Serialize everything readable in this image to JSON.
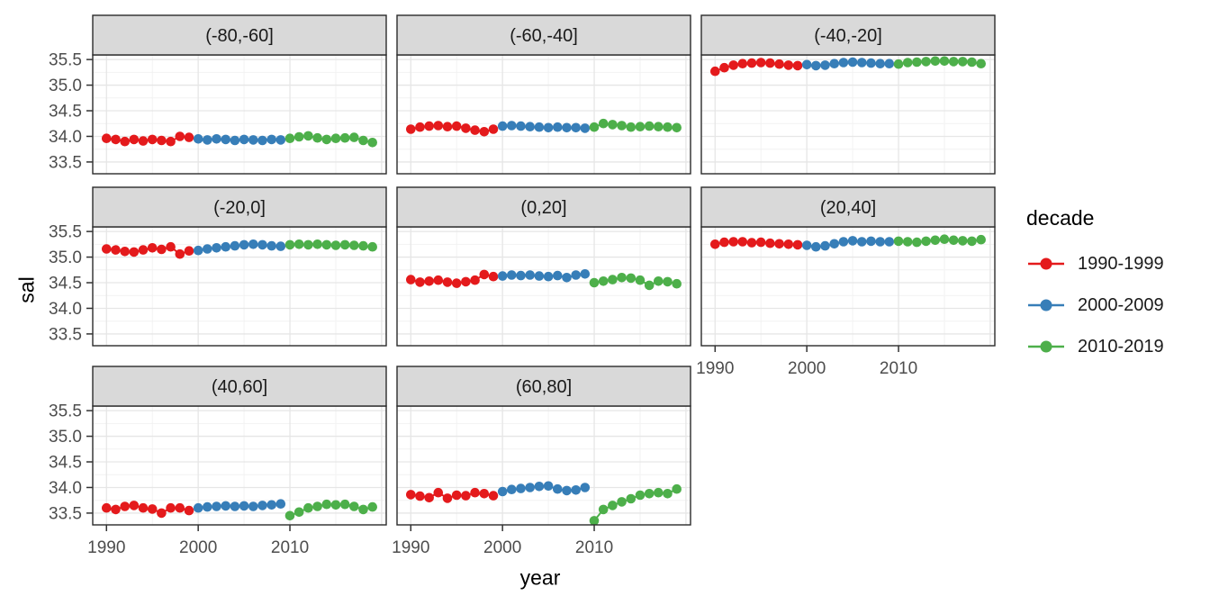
{
  "chart_data": {
    "type": "scatter",
    "title": "",
    "xlabel": "year",
    "ylabel": "sal",
    "grid": true,
    "x_ticks": [
      1990,
      2000,
      2010
    ],
    "x_minor_ticks": [
      1995,
      2005,
      2015
    ],
    "x_major_gridlines": [
      1990,
      2000,
      2010,
      2020
    ],
    "y_ticks": [
      33.5,
      34.0,
      34.5,
      35.0,
      35.5
    ],
    "y_minor_gridlines": [
      33.75,
      34.25,
      34.75,
      35.25
    ],
    "x_range": [
      1988.5,
      2020.5
    ],
    "y_range": [
      33.27,
      35.59
    ],
    "legend": {
      "title": "decade",
      "position": "right",
      "entries": [
        {
          "label": "1990-1999",
          "color": "#E41A1C"
        },
        {
          "label": "2000-2009",
          "color": "#377EB8"
        },
        {
          "label": "2010-2019",
          "color": "#4DAF4A"
        }
      ]
    },
    "facets": [
      {
        "label": "(-80,-60]",
        "series": [
          {
            "name": "1990-1999",
            "color": "#E41A1C",
            "start_year": 1990,
            "values": [
              33.96,
              33.94,
              33.9,
              33.94,
              33.91,
              33.94,
              33.92,
              33.9,
              34.0,
              33.98
            ]
          },
          {
            "name": "2000-2009",
            "color": "#377EB8",
            "start_year": 2000,
            "values": [
              33.95,
              33.93,
              33.95,
              33.94,
              33.92,
              33.94,
              33.93,
              33.92,
              33.94,
              33.93
            ]
          },
          {
            "name": "2010-2019",
            "color": "#4DAF4A",
            "start_year": 2010,
            "values": [
              33.96,
              33.99,
              34.01,
              33.97,
              33.94,
              33.96,
              33.97,
              33.98,
              33.92,
              33.88
            ]
          }
        ]
      },
      {
        "label": "(-60,-40]",
        "series": [
          {
            "name": "1990-1999",
            "color": "#E41A1C",
            "start_year": 1990,
            "values": [
              34.14,
              34.18,
              34.2,
              34.21,
              34.19,
              34.2,
              34.16,
              34.12,
              34.09,
              34.14
            ]
          },
          {
            "name": "2000-2009",
            "color": "#377EB8",
            "start_year": 2000,
            "values": [
              34.2,
              34.21,
              34.2,
              34.19,
              34.18,
              34.17,
              34.18,
              34.17,
              34.17,
              34.16
            ]
          },
          {
            "name": "2010-2019",
            "color": "#4DAF4A",
            "start_year": 2010,
            "values": [
              34.18,
              34.25,
              34.23,
              34.21,
              34.18,
              34.19,
              34.2,
              34.19,
              34.18,
              34.17
            ]
          }
        ]
      },
      {
        "label": "(-40,-20]",
        "series": [
          {
            "name": "1990-1999",
            "color": "#E41A1C",
            "start_year": 1990,
            "values": [
              35.27,
              35.34,
              35.39,
              35.42,
              35.43,
              35.44,
              35.43,
              35.41,
              35.39,
              35.38
            ]
          },
          {
            "name": "2000-2009",
            "color": "#377EB8",
            "start_year": 2000,
            "values": [
              35.4,
              35.38,
              35.39,
              35.42,
              35.44,
              35.45,
              35.44,
              35.43,
              35.42,
              35.42
            ]
          },
          {
            "name": "2010-2019",
            "color": "#4DAF4A",
            "start_year": 2010,
            "values": [
              35.41,
              35.44,
              35.45,
              35.46,
              35.47,
              35.47,
              35.46,
              35.46,
              35.45,
              35.42
            ]
          }
        ]
      },
      {
        "label": "(-20,0]",
        "series": [
          {
            "name": "1990-1999",
            "color": "#E41A1C",
            "start_year": 1990,
            "values": [
              35.16,
              35.14,
              35.11,
              35.1,
              35.14,
              35.18,
              35.15,
              35.2,
              35.06,
              35.12
            ]
          },
          {
            "name": "2000-2009",
            "color": "#377EB8",
            "start_year": 2000,
            "values": [
              35.13,
              35.16,
              35.18,
              35.2,
              35.22,
              35.24,
              35.25,
              35.24,
              35.22,
              35.21
            ]
          },
          {
            "name": "2010-2019",
            "color": "#4DAF4A",
            "start_year": 2010,
            "values": [
              35.24,
              35.25,
              35.24,
              35.25,
              35.24,
              35.23,
              35.24,
              35.23,
              35.22,
              35.2
            ]
          }
        ]
      },
      {
        "label": "(0,20]",
        "series": [
          {
            "name": "1990-1999",
            "color": "#E41A1C",
            "start_year": 1990,
            "values": [
              34.56,
              34.51,
              34.53,
              34.55,
              34.51,
              34.49,
              34.52,
              34.55,
              34.66,
              34.62
            ]
          },
          {
            "name": "2000-2009",
            "color": "#377EB8",
            "start_year": 2000,
            "values": [
              34.63,
              34.65,
              34.64,
              34.65,
              34.63,
              34.62,
              34.64,
              34.6,
              34.65,
              34.67
            ]
          },
          {
            "name": "2010-2019",
            "color": "#4DAF4A",
            "start_year": 2010,
            "values": [
              34.5,
              34.53,
              34.56,
              34.6,
              34.59,
              34.55,
              34.45,
              34.53,
              34.52,
              34.48
            ]
          }
        ]
      },
      {
        "label": "(20,40]",
        "series": [
          {
            "name": "1990-1999",
            "color": "#E41A1C",
            "start_year": 1990,
            "values": [
              35.25,
              35.29,
              35.3,
              35.3,
              35.28,
              35.29,
              35.27,
              35.26,
              35.25,
              35.24
            ]
          },
          {
            "name": "2000-2009",
            "color": "#377EB8",
            "start_year": 2000,
            "values": [
              35.23,
              35.2,
              35.22,
              35.26,
              35.3,
              35.32,
              35.3,
              35.31,
              35.3,
              35.3
            ]
          },
          {
            "name": "2010-2019",
            "color": "#4DAF4A",
            "start_year": 2010,
            "values": [
              35.31,
              35.3,
              35.29,
              35.31,
              35.33,
              35.35,
              35.33,
              35.32,
              35.31,
              35.34
            ]
          }
        ]
      },
      {
        "label": "(40,60]",
        "series": [
          {
            "name": "1990-1999",
            "color": "#E41A1C",
            "start_year": 1990,
            "values": [
              33.6,
              33.57,
              33.63,
              33.65,
              33.6,
              33.58,
              33.5,
              33.6,
              33.6,
              33.55
            ]
          },
          {
            "name": "2000-2009",
            "color": "#377EB8",
            "start_year": 2000,
            "values": [
              33.6,
              33.62,
              33.63,
              33.64,
              33.63,
              33.64,
              33.63,
              33.65,
              33.66,
              33.68
            ]
          },
          {
            "name": "2010-2019",
            "color": "#4DAF4A",
            "start_year": 2010,
            "values": [
              33.45,
              33.52,
              33.6,
              33.63,
              33.67,
              33.66,
              33.67,
              33.63,
              33.57,
              33.62
            ]
          }
        ]
      },
      {
        "label": "(60,80]",
        "series": [
          {
            "name": "1990-1999",
            "color": "#E41A1C",
            "start_year": 1990,
            "values": [
              33.86,
              33.83,
              33.8,
              33.9,
              33.79,
              33.85,
              33.84,
              33.9,
              33.88,
              33.84
            ]
          },
          {
            "name": "2000-2009",
            "color": "#377EB8",
            "start_year": 2000,
            "values": [
              33.92,
              33.96,
              33.98,
              34.0,
              34.02,
              34.03,
              33.97,
              33.94,
              33.95,
              34.0
            ]
          },
          {
            "name": "2010-2019",
            "color": "#4DAF4A",
            "start_year": 2010,
            "values": [
              33.35,
              33.57,
              33.65,
              33.72,
              33.78,
              33.85,
              33.88,
              33.9,
              33.88,
              33.97
            ]
          }
        ]
      }
    ]
  }
}
